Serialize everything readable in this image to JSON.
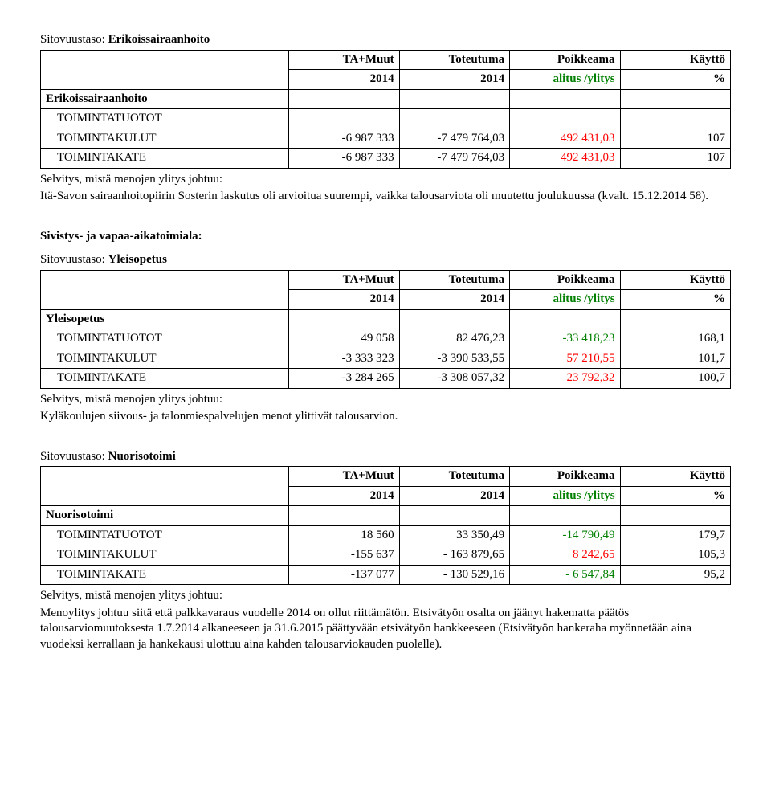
{
  "sections": {
    "erikoissairaanhoito": {
      "sitovuustaso_prefix": "Sitovuustaso: ",
      "sitovuustaso": "Erikoissairaanhoito",
      "header": {
        "col1_top": "TA+Muut",
        "col1_bot": "2014",
        "col2_top": "Toteutuma",
        "col2_bot": "2014",
        "col3_top": "Poikkeama",
        "col3_bot": "alitus /ylitys",
        "col4_top": "Käyttö",
        "col4_bot": "%"
      },
      "group_label": "Erikoissairaanhoito",
      "rows": {
        "r0": {
          "label": "TOIMINTATUOTOT",
          "v1": "",
          "v2": "",
          "v3": "",
          "v4": ""
        },
        "r1": {
          "label": "TOIMINTAKULUT",
          "v1": "-6 987 333",
          "v2": "-7 479 764,03",
          "v3": "492 431,03",
          "v4": "107"
        },
        "r2": {
          "label": "TOIMINTAKATE",
          "v1": "-6 987 333",
          "v2": "-7 479 764,03",
          "v3": "492 431,03",
          "v4": "107"
        }
      },
      "note_label": "Selvitys, mistä menojen ylitys johtuu:",
      "note_body": "Itä-Savon sairaanhoitopiirin Sosterin laskutus oli arvioitua suurempi, vaikka talousarviota oli muutettu joulukuussa (kvalt. 15.12.2014 58)."
    },
    "sivistys_heading": "Sivistys- ja vapaa-aikatoimiala:",
    "yleisopetus": {
      "sitovuustaso_prefix": "Sitovuustaso: ",
      "sitovuustaso": "Yleisopetus",
      "header": {
        "col1_top": "TA+Muut",
        "col1_bot": "2014",
        "col2_top": "Toteutuma",
        "col2_bot": "2014",
        "col3_top": "Poikkeama",
        "col3_bot": "alitus /ylitys",
        "col4_top": "Käyttö",
        "col4_bot": "%"
      },
      "group_label": "Yleisopetus",
      "rows": {
        "r0": {
          "label": "TOIMINTATUOTOT",
          "v1": "49 058",
          "v2": "82 476,23",
          "v3": "-33 418,23",
          "v4": "168,1"
        },
        "r1": {
          "label": "TOIMINTAKULUT",
          "v1": "-3 333 323",
          "v2": "-3 390 533,55",
          "v3": "57 210,55",
          "v4": "101,7"
        },
        "r2": {
          "label": "TOIMINTAKATE",
          "v1": "-3 284 265",
          "v2": "-3 308 057,32",
          "v3": "23 792,32",
          "v4": "100,7"
        }
      },
      "note_label": "Selvitys, mistä menojen ylitys johtuu:",
      "note_body": "Kyläkoulujen siivous- ja talonmiespalvelujen menot ylittivät talousarvion."
    },
    "nuorisotoimi": {
      "sitovuustaso_prefix": "Sitovuustaso: ",
      "sitovuustaso": "Nuorisotoimi",
      "header": {
        "col1_top": "TA+Muut",
        "col1_bot": "2014",
        "col2_top": "Toteutuma",
        "col2_bot": "2014",
        "col3_top": "Poikkeama",
        "col3_bot": "alitus /ylitys",
        "col4_top": "Käyttö",
        "col4_bot": "%"
      },
      "group_label": "Nuorisotoimi",
      "rows": {
        "r0": {
          "label": "TOIMINTATUOTOT",
          "v1": "18 560",
          "v2": "33  350,49",
          "v3": "-14 790,49",
          "v4": "179,7"
        },
        "r1": {
          "label": "TOIMINTAKULUT",
          "v1": "-155 637",
          "v2": "- 163 879,65",
          "v3": "8 242,65",
          "v4": "105,3"
        },
        "r2": {
          "label": "TOIMINTAKATE",
          "v1": "-137 077",
          "v2": "- 130 529,16",
          "v3": "- 6 547,84",
          "v4": "95,2"
        }
      },
      "note_label": "Selvitys, mistä menojen ylitys johtuu:",
      "note_body": "Menoylitys johtuu siitä että palkkavaraus vuodelle 2014 on ollut riittämätön. Etsivätyön osalta on jäänyt hakematta päätös talousarviomuutoksesta 1.7.2014 alkaneeseen ja 31.6.2015 päättyvään etsivätyön hankkeeseen (Etsivätyön hankeraha myönnetään aina vuodeksi kerrallaan ja hankekausi ulottuu aina kahden talousarviokauden puolelle)."
    }
  },
  "colors": {
    "green": "#008000",
    "red": "#ff0000",
    "text": "#000000",
    "bg": "#ffffff",
    "border": "#000000"
  }
}
